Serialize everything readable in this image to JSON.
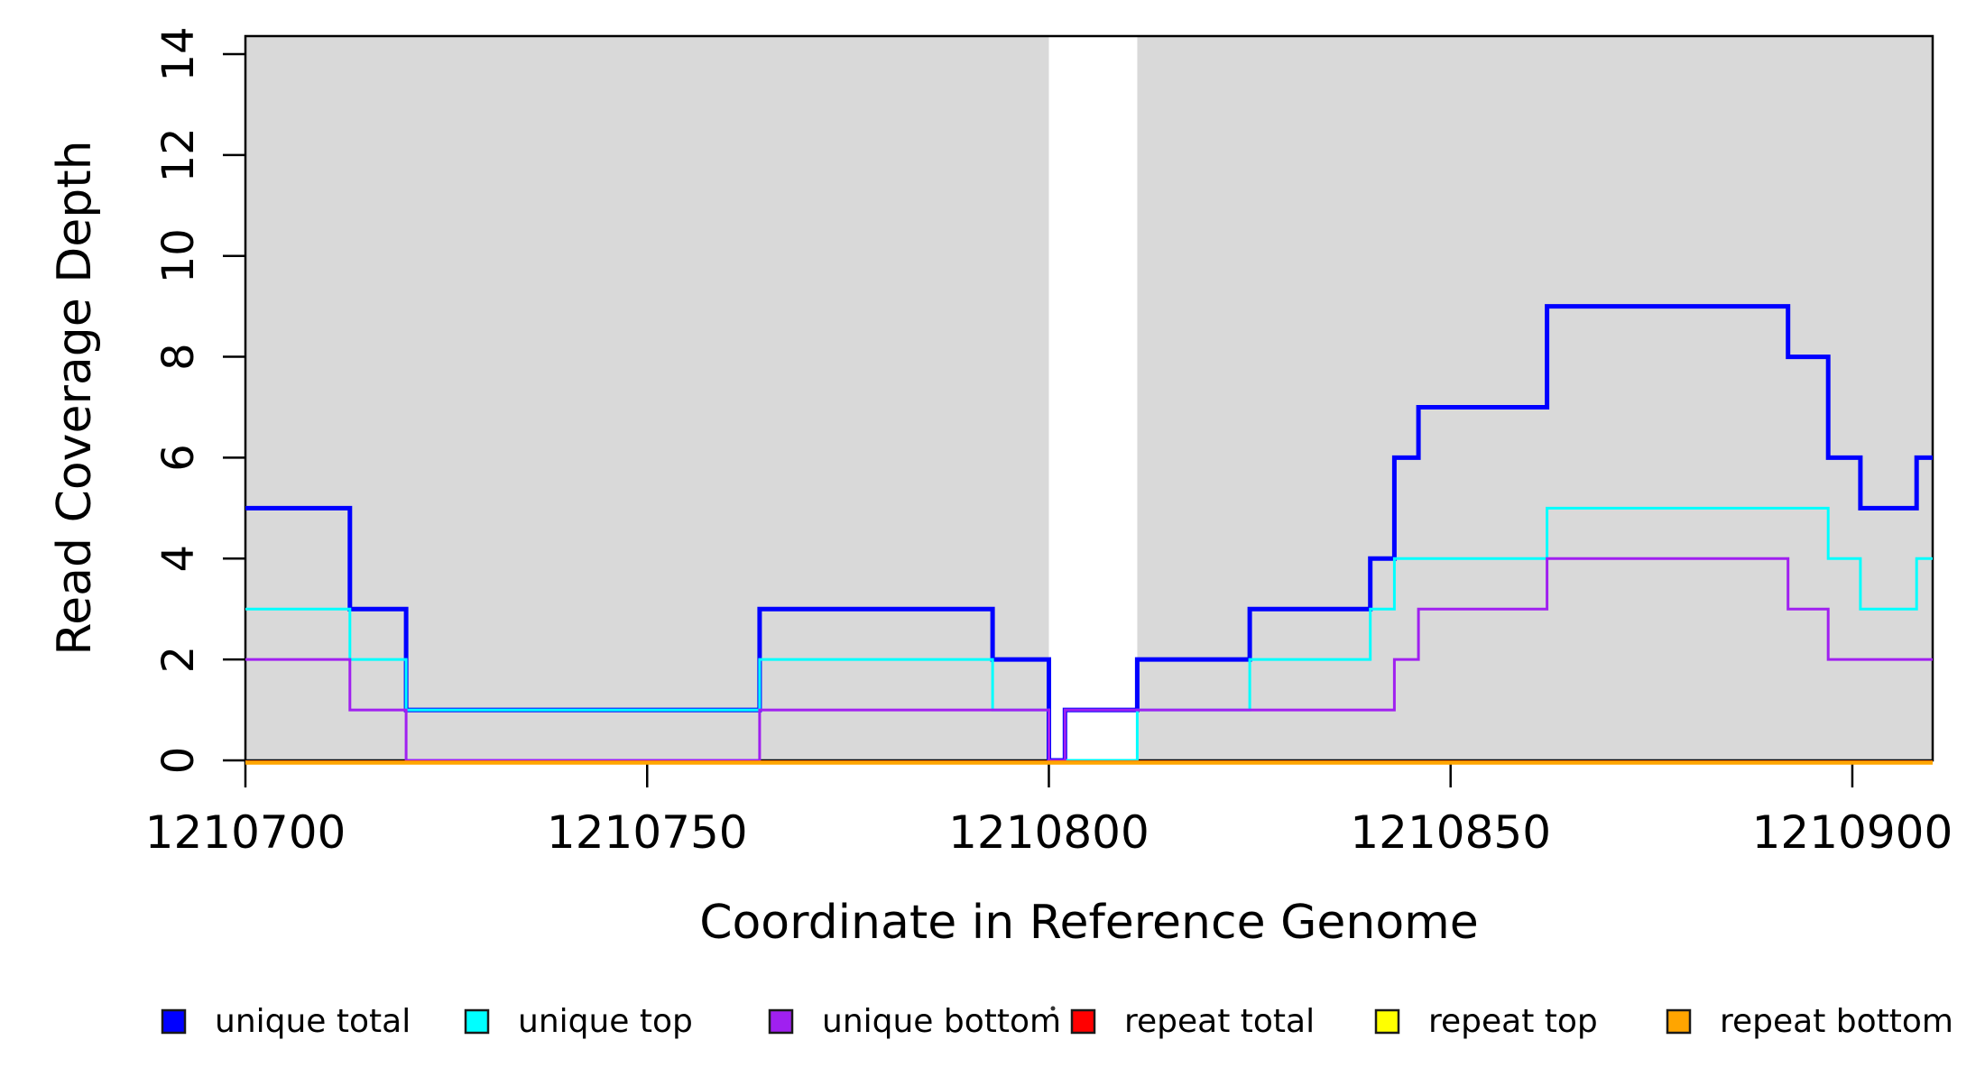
{
  "chart_data": {
    "type": "line",
    "subtype": "step-post",
    "title": "",
    "xlabel": "Coordinate in Reference Genome",
    "ylabel": "Read Coverage Depth",
    "xlim": [
      1210700,
      1210910
    ],
    "ylim": [
      0,
      14
    ],
    "xticks": [
      "1210700",
      "1210750",
      "1210800",
      "1210850",
      "1210900"
    ],
    "xtick_values": [
      1210700,
      1210750,
      1210800,
      1210850,
      1210900
    ],
    "yticks": [
      "0",
      "2",
      "4",
      "6",
      "8",
      "10",
      "12",
      "14"
    ],
    "ytick_values": [
      0,
      2,
      4,
      6,
      8,
      10,
      12,
      14
    ],
    "grid": false,
    "legend_position": "bottom",
    "shaded_band_color": "#d9d9d9",
    "shaded_regions": [
      [
        1210700,
        1210800
      ],
      [
        1210811,
        1210910
      ]
    ],
    "x_end": 1210910,
    "series": [
      {
        "name": "unique total",
        "key": "unique_total",
        "color": "#0000ff",
        "points": [
          [
            1210700,
            5
          ],
          [
            1210713,
            3
          ],
          [
            1210720,
            1
          ],
          [
            1210764,
            3
          ],
          [
            1210793,
            2
          ],
          [
            1210800,
            0
          ],
          [
            1210802,
            1
          ],
          [
            1210811,
            2
          ],
          [
            1210825,
            3
          ],
          [
            1210840,
            4
          ],
          [
            1210843,
            6
          ],
          [
            1210846,
            7
          ],
          [
            1210862,
            9
          ],
          [
            1210892,
            8
          ],
          [
            1210897,
            6
          ],
          [
            1210901,
            5
          ],
          [
            1210908,
            6
          ]
        ]
      },
      {
        "name": "unique top",
        "key": "unique_top",
        "color": "#00ffff",
        "points": [
          [
            1210700,
            3
          ],
          [
            1210713,
            2
          ],
          [
            1210720,
            1
          ],
          [
            1210764,
            2
          ],
          [
            1210793,
            1
          ],
          [
            1210800,
            0
          ],
          [
            1210811,
            1
          ],
          [
            1210825,
            2
          ],
          [
            1210840,
            3
          ],
          [
            1210843,
            4
          ],
          [
            1210862,
            5
          ],
          [
            1210897,
            4
          ],
          [
            1210901,
            3
          ],
          [
            1210908,
            4
          ]
        ]
      },
      {
        "name": "unique bottom",
        "key": "unique_bottom",
        "color": "#a020f0",
        "points": [
          [
            1210700,
            2
          ],
          [
            1210713,
            1
          ],
          [
            1210720,
            0
          ],
          [
            1210764,
            1
          ],
          [
            1210800,
            0
          ],
          [
            1210802,
            1
          ],
          [
            1210843,
            2
          ],
          [
            1210846,
            3
          ],
          [
            1210862,
            4
          ],
          [
            1210892,
            3
          ],
          [
            1210897,
            2
          ]
        ]
      },
      {
        "name": "repeat total",
        "key": "repeat_total",
        "color": "#ff0000",
        "points": [
          [
            1210700,
            0
          ]
        ]
      },
      {
        "name": "repeat top",
        "key": "repeat_top",
        "color": "#ffff00",
        "points": [
          [
            1210700,
            0
          ]
        ]
      },
      {
        "name": "repeat bottom",
        "key": "repeat_bottom",
        "color": "#ffa500",
        "points": [
          [
            1210700,
            0
          ]
        ]
      }
    ]
  },
  "legend": {
    "items": [
      {
        "label": "unique total",
        "color": "#0000ff"
      },
      {
        "label": "unique top",
        "color": "#00ffff"
      },
      {
        "label": "unique bottom",
        "color": "#a020f0"
      },
      {
        "label": "repeat total",
        "color": "#ff0000"
      },
      {
        "label": "repeat top",
        "color": "#ffff00"
      },
      {
        "label": "repeat bottom",
        "color": "#ffa500"
      }
    ],
    "stray_dot": "."
  },
  "axis": {
    "color": "#000000"
  }
}
